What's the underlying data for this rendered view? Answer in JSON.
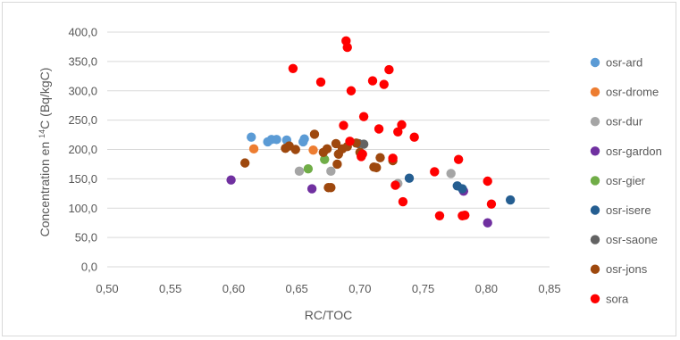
{
  "chart_data": {
    "type": "scatter",
    "title": "",
    "xlabel": "RC/TOC",
    "ylabel_parts": [
      "Concentration en ",
      "14",
      "C (Bq/kgC)"
    ],
    "xlim": [
      0.5,
      0.85
    ],
    "ylim": [
      0,
      400
    ],
    "x_ticks": [
      "0,50",
      "0,55",
      "0,60",
      "0,65",
      "0,70",
      "0,75",
      "0,80",
      "0,85"
    ],
    "y_ticks": [
      "0,0",
      "50,0",
      "100,0",
      "150,0",
      "200,0",
      "250,0",
      "300,0",
      "350,0",
      "400,0"
    ],
    "grid": "horizontal",
    "legend_position": "right",
    "series": [
      {
        "name": "osr-ard",
        "color": "#5b9bd5",
        "points": [
          [
            0.614,
            221
          ],
          [
            0.627,
            213
          ],
          [
            0.63,
            217
          ],
          [
            0.634,
            217
          ],
          [
            0.642,
            216
          ],
          [
            0.655,
            213
          ],
          [
            0.656,
            218
          ]
        ]
      },
      {
        "name": "osr-drome",
        "color": "#ed7d31",
        "points": [
          [
            0.616,
            201
          ],
          [
            0.663,
            199
          ]
        ]
      },
      {
        "name": "osr-dur",
        "color": "#a5a5a5",
        "points": [
          [
            0.652,
            163
          ],
          [
            0.677,
            163
          ],
          [
            0.73,
            142
          ],
          [
            0.772,
            159
          ]
        ]
      },
      {
        "name": "osr-gardon",
        "color": "#7030a0",
        "points": [
          [
            0.598,
            148
          ],
          [
            0.662,
            133
          ],
          [
            0.782,
            129
          ],
          [
            0.801,
            75
          ]
        ]
      },
      {
        "name": "osr-gier",
        "color": "#70ad47",
        "points": [
          [
            0.659,
            167
          ],
          [
            0.672,
            183
          ]
        ]
      },
      {
        "name": "osr-isere",
        "color": "#255e91",
        "points": [
          [
            0.739,
            151
          ],
          [
            0.777,
            138
          ],
          [
            0.781,
            133
          ],
          [
            0.819,
            114
          ]
        ]
      },
      {
        "name": "osr-saone",
        "color": "#636363",
        "points": [
          [
            0.699,
            210
          ],
          [
            0.703,
            209
          ]
        ]
      },
      {
        "name": "osr-jons",
        "color": "#9e480e",
        "points": [
          [
            0.609,
            177
          ],
          [
            0.641,
            202
          ],
          [
            0.644,
            206
          ],
          [
            0.649,
            200
          ],
          [
            0.664,
            226
          ],
          [
            0.671,
            195
          ],
          [
            0.674,
            201
          ],
          [
            0.675,
            135
          ],
          [
            0.677,
            135
          ],
          [
            0.681,
            210
          ],
          [
            0.682,
            175
          ],
          [
            0.683,
            192
          ],
          [
            0.686,
            201
          ],
          [
            0.69,
            205
          ],
          [
            0.697,
            211
          ],
          [
            0.7,
            195
          ],
          [
            0.711,
            170
          ],
          [
            0.713,
            169
          ],
          [
            0.716,
            186
          ],
          [
            0.726,
            181
          ]
        ]
      },
      {
        "name": "sora",
        "color": "#ff0000",
        "points": [
          [
            0.647,
            338
          ],
          [
            0.669,
            315
          ],
          [
            0.687,
            241
          ],
          [
            0.689,
            385
          ],
          [
            0.69,
            374
          ],
          [
            0.693,
            300
          ],
          [
            0.692,
            214
          ],
          [
            0.701,
            188
          ],
          [
            0.702,
            192
          ],
          [
            0.703,
            256
          ],
          [
            0.71,
            317
          ],
          [
            0.715,
            235
          ],
          [
            0.719,
            311
          ],
          [
            0.723,
            336
          ],
          [
            0.726,
            185
          ],
          [
            0.728,
            139
          ],
          [
            0.73,
            230
          ],
          [
            0.733,
            242
          ],
          [
            0.734,
            111
          ],
          [
            0.743,
            221
          ],
          [
            0.759,
            162
          ],
          [
            0.763,
            87
          ],
          [
            0.778,
            183
          ],
          [
            0.781,
            87
          ],
          [
            0.783,
            88
          ],
          [
            0.801,
            146
          ],
          [
            0.804,
            107
          ]
        ]
      }
    ]
  }
}
